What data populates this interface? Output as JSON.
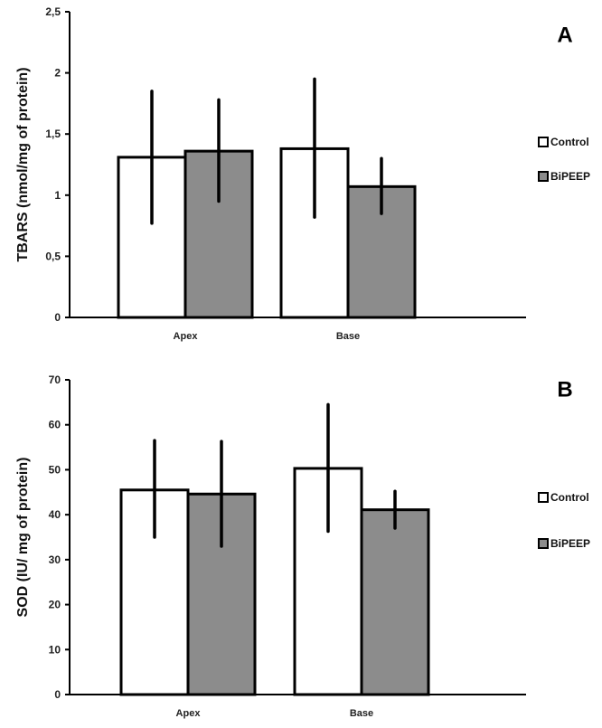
{
  "chart_data": [
    {
      "type": "bar",
      "panel_label": "A",
      "title": "",
      "ylabel": "TBARS (nmol/mg of protein)",
      "xlabel": "",
      "categories": [
        "Apex",
        "Base"
      ],
      "ylim": [
        0,
        2.5
      ],
      "yticks": [
        0,
        0.5,
        1,
        1.5,
        2,
        2.5
      ],
      "ytick_labels": [
        "0",
        "0,5",
        "1",
        "1,5",
        "2",
        "2,5"
      ],
      "grid": false,
      "legend_position": "right",
      "series": [
        {
          "name": "Control",
          "color": "#ffffff",
          "values": [
            1.31,
            1.38
          ],
          "error_low": [
            0.77,
            0.82
          ],
          "error_high": [
            1.85,
            1.95
          ]
        },
        {
          "name": "BiPEEP",
          "color": "#8c8c8c",
          "values": [
            1.36,
            1.07
          ],
          "error_low": [
            0.95,
            0.85
          ],
          "error_high": [
            1.78,
            1.3
          ]
        }
      ]
    },
    {
      "type": "bar",
      "panel_label": "B",
      "title": "",
      "ylabel": "SOD (IU/ mg of protein)",
      "xlabel": "",
      "categories": [
        "Apex",
        "Base"
      ],
      "ylim": [
        0,
        70
      ],
      "yticks": [
        0,
        10,
        20,
        30,
        40,
        50,
        60,
        70
      ],
      "ytick_labels": [
        "0",
        "10",
        "20",
        "30",
        "40",
        "50",
        "60",
        "70"
      ],
      "grid": false,
      "legend_position": "right",
      "series": [
        {
          "name": "Control",
          "color": "#ffffff",
          "values": [
            45.5,
            50.3
          ],
          "error_low": [
            35,
            36.3
          ],
          "error_high": [
            56.5,
            64.5
          ]
        },
        {
          "name": "BiPEEP",
          "color": "#8c8c8c",
          "values": [
            44.6,
            41.1
          ],
          "error_low": [
            33,
            37
          ],
          "error_high": [
            56.3,
            45.2
          ]
        }
      ]
    }
  ]
}
